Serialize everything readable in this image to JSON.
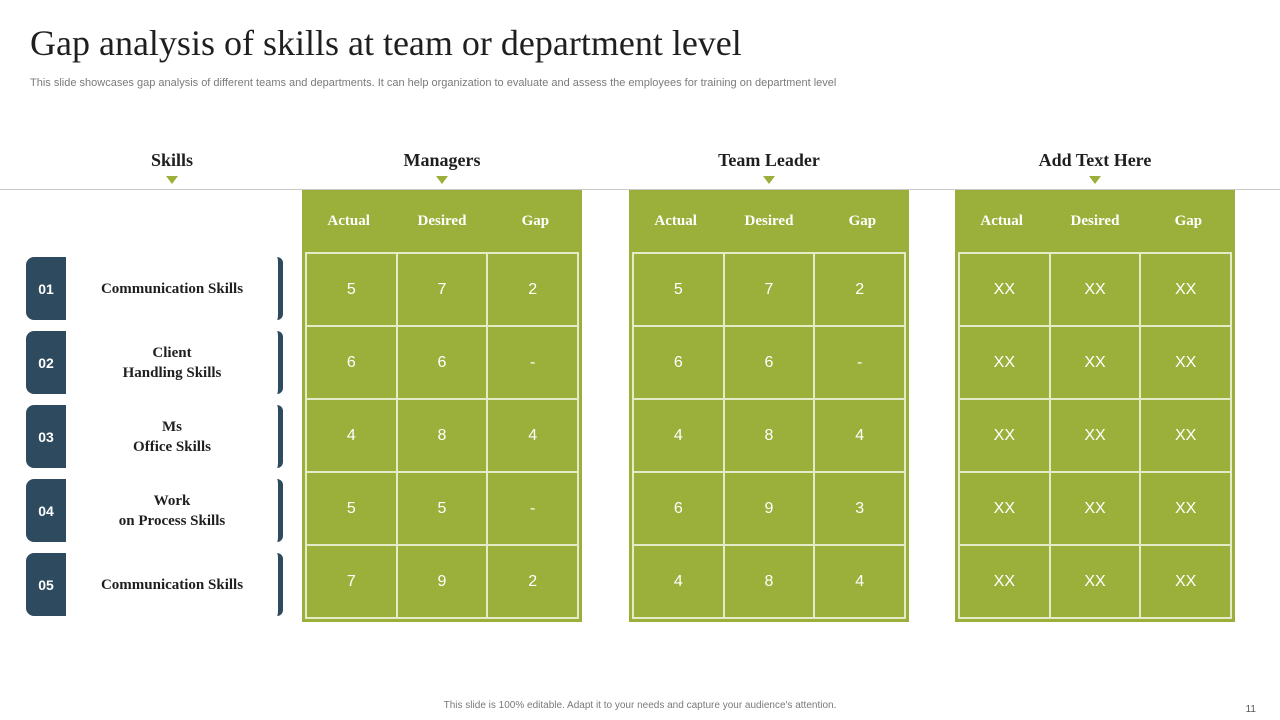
{
  "title": "Gap analysis of skills at team or department level",
  "subtitle": "This slide showcases gap analysis of different teams and departments. It can help organization to evaluate and assess the employees for training on department level",
  "columns": {
    "skills": "Skills",
    "groups": [
      {
        "name": "Managers",
        "headers": [
          "Actual",
          "Desired",
          "Gap"
        ],
        "rows": [
          [
            "5",
            "7",
            "2"
          ],
          [
            "6",
            "6",
            "-"
          ],
          [
            "4",
            "8",
            "4"
          ],
          [
            "5",
            "5",
            "-"
          ],
          [
            "7",
            "9",
            "2"
          ]
        ]
      },
      {
        "name": "Team Leader",
        "headers": [
          "Actual",
          "Desired",
          "Gap"
        ],
        "rows": [
          [
            "5",
            "7",
            "2"
          ],
          [
            "6",
            "6",
            "-"
          ],
          [
            "4",
            "8",
            "4"
          ],
          [
            "6",
            "9",
            "3"
          ],
          [
            "4",
            "8",
            "4"
          ]
        ]
      },
      {
        "name": "Add Text Here",
        "headers": [
          "Actual",
          "Desired",
          "Gap"
        ],
        "rows": [
          [
            "XX",
            "XX",
            "XX"
          ],
          [
            "XX",
            "XX",
            "XX"
          ],
          [
            "XX",
            "XX",
            "XX"
          ],
          [
            "XX",
            "XX",
            "XX"
          ],
          [
            "XX",
            "XX",
            "XX"
          ]
        ]
      }
    ]
  },
  "skills": [
    {
      "num": "01",
      "label": "Communication Skills"
    },
    {
      "num": "02",
      "label": "Client\nHandling Skills"
    },
    {
      "num": "03",
      "label": "Ms\nOffice Skills"
    },
    {
      "num": "04",
      "label": "Work\non Process Skills"
    },
    {
      "num": "05",
      "label": "Communication Skills"
    }
  ],
  "footer": "This slide is 100% editable.  Adapt it to your needs and capture your audience's attention.",
  "page_number": "11",
  "colors": {
    "accent": "#9bb03a",
    "navy": "#2e4a5f"
  }
}
